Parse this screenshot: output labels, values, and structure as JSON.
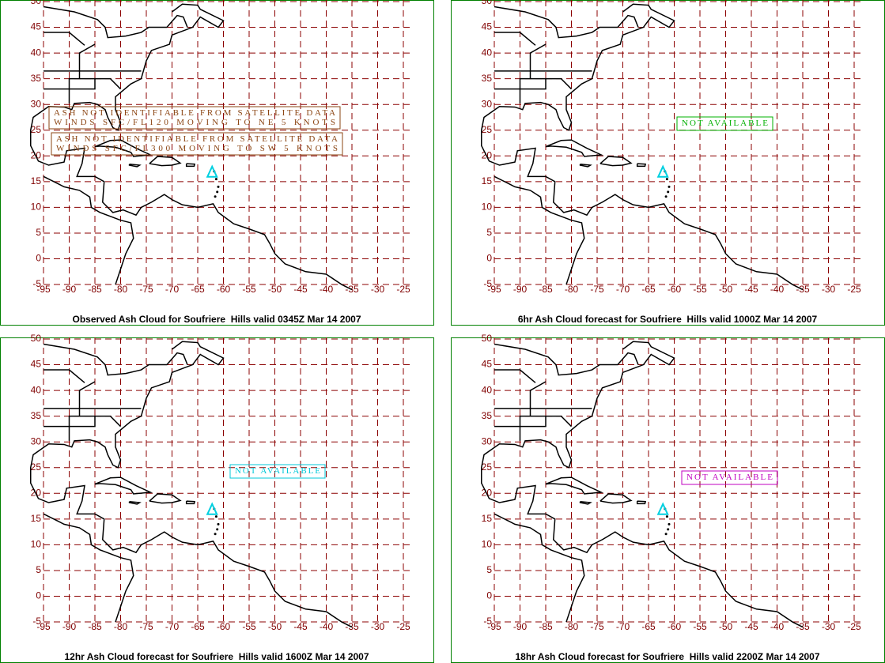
{
  "lat_labels": [
    50,
    45,
    40,
    35,
    30,
    25,
    20,
    15,
    10,
    5,
    0,
    -5
  ],
  "lon_labels": [
    -95,
    -90,
    -85,
    -80,
    -75,
    -70,
    -65,
    -60,
    -55,
    -50,
    -45,
    -40,
    -35,
    -30,
    -25
  ],
  "panels": [
    {
      "caption": "Observed Ash Cloud for Soufriere  Hills valid 0345Z Mar 14 2007",
      "notes": [
        {
          "lines": [
            "ASH NOT IDENTIFIABLE FROM SATELLITE DATA",
            "WINDS SFC/FL120 MOVING TO NE 5 KNOTS"
          ],
          "color": "#8b4513"
        },
        {
          "lines": [
            "ASH NOT IDENTIFIABLE FROM SATELLITE DATA",
            "WINDS SFC/FL300 MOVING TO SW 5 KNOTS"
          ],
          "color": "#8b4513"
        }
      ]
    },
    {
      "caption": "6hr Ash Cloud forecast for Soufriere  Hills valid 1000Z Mar 14 2007",
      "notes": [
        {
          "lines": [
            "NOT AVAILABLE"
          ],
          "color": "#00b000"
        }
      ]
    },
    {
      "caption": "12hr Ash Cloud forecast for Soufriere  Hills valid 1600Z Mar 14 2007",
      "notes": [
        {
          "lines": [
            "NOT AVAILABLE"
          ],
          "color": "#00c8d8"
        }
      ]
    },
    {
      "caption": "18hr Ash Cloud forecast for Soufriere  Hills valid 2200Z Mar 14 2007",
      "notes": [
        {
          "lines": [
            "NOT AVAILABLE"
          ],
          "color": "#c000c0"
        }
      ]
    }
  ]
}
